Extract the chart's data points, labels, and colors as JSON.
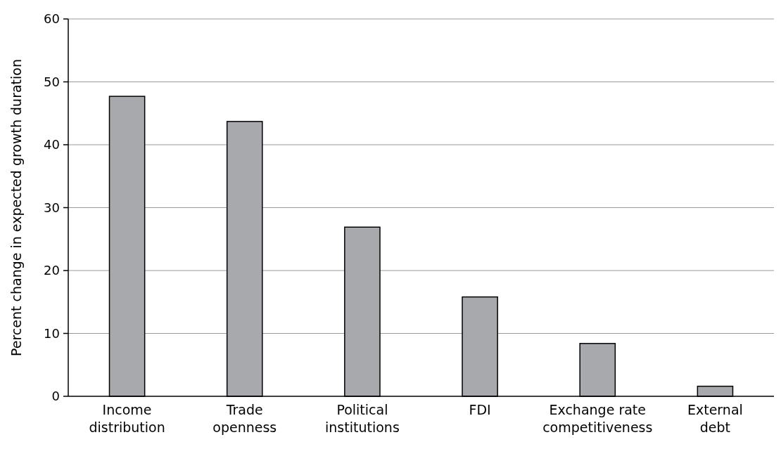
{
  "chart_data": {
    "type": "bar",
    "ylabel": "Percent change in expected growth duration",
    "categories": [
      "Income distribution",
      "Trade openness",
      "Political institutions",
      "FDI",
      "Exchange rate competitiveness",
      "External debt"
    ],
    "values": [
      47.7,
      43.7,
      26.9,
      15.8,
      8.4,
      1.6
    ],
    "color": "#a7a9ac",
    "ylim": [
      0,
      60
    ],
    "yticks": [
      0,
      10,
      20,
      30,
      40,
      50,
      60
    ],
    "grid": "y"
  }
}
